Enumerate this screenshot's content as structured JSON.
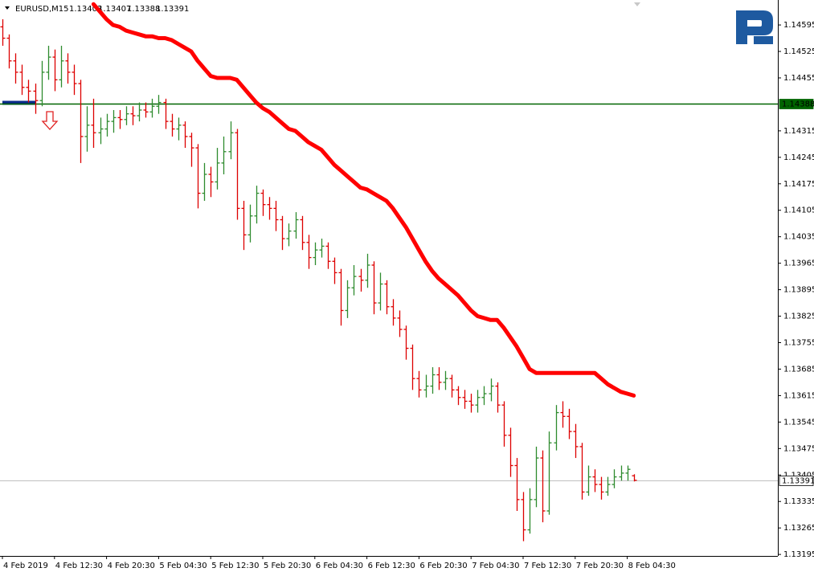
{
  "chart_data": {
    "type": "ohlc",
    "title": "EURUSD,M15",
    "header_values": [
      1.13403,
      1.13407,
      1.13388,
      1.13391
    ],
    "up_color": "#2e8b2e",
    "down_color": "#dd0000",
    "ylim": [
      1.13191,
      1.14661
    ],
    "yticks": [
      1.14595,
      1.14525,
      1.14455,
      1.14315,
      1.14245,
      1.14175,
      1.14105,
      1.14035,
      1.13965,
      1.13895,
      1.13825,
      1.13755,
      1.13685,
      1.13615,
      1.13545,
      1.13475,
      1.13405,
      1.13335,
      1.13265,
      1.13195
    ],
    "categories": [
      "4 Feb 2019",
      null,
      null,
      null,
      null,
      null,
      null,
      null,
      "4 Feb 12:30",
      null,
      null,
      null,
      null,
      null,
      null,
      null,
      "4 Feb 20:30",
      null,
      null,
      null,
      null,
      null,
      null,
      null,
      "5 Feb 04:30",
      null,
      null,
      null,
      null,
      null,
      null,
      null,
      "5 Feb 12:30",
      null,
      null,
      null,
      null,
      null,
      null,
      null,
      "5 Feb 20:30",
      null,
      null,
      null,
      null,
      null,
      null,
      null,
      "6 Feb 04:30",
      null,
      null,
      null,
      null,
      null,
      null,
      null,
      "6 Feb 12:30",
      null,
      null,
      null,
      null,
      null,
      null,
      null,
      "6 Feb 20:30",
      null,
      null,
      null,
      null,
      null,
      null,
      null,
      "7 Feb 04:30",
      null,
      null,
      null,
      null,
      null,
      null,
      null,
      "7 Feb 12:30",
      null,
      null,
      null,
      null,
      null,
      null,
      null,
      "7 Feb 20:30",
      null,
      null,
      null,
      null,
      null,
      null,
      null,
      "8 Feb 04:30",
      null
    ],
    "ohlc": [
      [
        1.1459,
        1.1461,
        1.1454,
        1.1456
      ],
      [
        1.1456,
        1.1457,
        1.1448,
        1.145
      ],
      [
        1.145,
        1.1452,
        1.1444,
        1.1447
      ],
      [
        1.1447,
        1.1449,
        1.1441,
        1.1443
      ],
      [
        1.1443,
        1.1445,
        1.1439,
        1.1442
      ],
      [
        1.1442,
        1.1444,
        1.1436,
        1.14395
      ],
      [
        1.14395,
        1.145,
        1.1438,
        1.1447
      ],
      [
        1.1447,
        1.1454,
        1.1445,
        1.1451
      ],
      [
        1.1451,
        1.1453,
        1.1442,
        1.1445
      ],
      [
        1.1445,
        1.1454,
        1.1443,
        1.145
      ],
      [
        1.145,
        1.1452,
        1.1444,
        1.1447
      ],
      [
        1.1447,
        1.1449,
        1.1441,
        1.1444
      ],
      [
        1.1444,
        1.1445,
        1.1423,
        1.143
      ],
      [
        1.143,
        1.1438,
        1.1426,
        1.1433
      ],
      [
        1.1433,
        1.144,
        1.1427,
        1.1431
      ],
      [
        1.1431,
        1.1435,
        1.1428,
        1.1432
      ],
      [
        1.1432,
        1.1436,
        1.143,
        1.1434
      ],
      [
        1.1434,
        1.1437,
        1.1431,
        1.1435
      ],
      [
        1.1435,
        1.1437,
        1.1432,
        1.14345
      ],
      [
        1.14345,
        1.1438,
        1.1433,
        1.1436
      ],
      [
        1.1436,
        1.1438,
        1.1433,
        1.14355
      ],
      [
        1.14355,
        1.1439,
        1.1434,
        1.1437
      ],
      [
        1.1437,
        1.1439,
        1.1435,
        1.14365
      ],
      [
        1.14365,
        1.144,
        1.1435,
        1.1438
      ],
      [
        1.1438,
        1.1441,
        1.1436,
        1.1439
      ],
      [
        1.1439,
        1.144,
        1.1432,
        1.1434
      ],
      [
        1.1434,
        1.1436,
        1.143,
        1.1432
      ],
      [
        1.1432,
        1.1435,
        1.1429,
        1.1433
      ],
      [
        1.1433,
        1.1434,
        1.1427,
        1.143
      ],
      [
        1.143,
        1.1431,
        1.1422,
        1.1427
      ],
      [
        1.1427,
        1.1428,
        1.1411,
        1.1415
      ],
      [
        1.1415,
        1.1423,
        1.1413,
        1.142
      ],
      [
        1.142,
        1.1422,
        1.1414,
        1.1418
      ],
      [
        1.1418,
        1.1427,
        1.1416,
        1.1423
      ],
      [
        1.1423,
        1.143,
        1.142,
        1.1426
      ],
      [
        1.1426,
        1.1434,
        1.1424,
        1.1431
      ],
      [
        1.1431,
        1.1432,
        1.1408,
        1.1411
      ],
      [
        1.1411,
        1.1413,
        1.14,
        1.1404
      ],
      [
        1.1404,
        1.1412,
        1.1402,
        1.1409
      ],
      [
        1.1409,
        1.1417,
        1.1407,
        1.1415
      ],
      [
        1.1415,
        1.1416,
        1.1409,
        1.1412
      ],
      [
        1.1412,
        1.1414,
        1.1408,
        1.1411
      ],
      [
        1.1411,
        1.1413,
        1.1405,
        1.1408
      ],
      [
        1.1408,
        1.1409,
        1.14,
        1.1403
      ],
      [
        1.1403,
        1.1407,
        1.1401,
        1.1405
      ],
      [
        1.1405,
        1.141,
        1.1403,
        1.1408
      ],
      [
        1.1408,
        1.1409,
        1.14,
        1.1402
      ],
      [
        1.1402,
        1.1404,
        1.1395,
        1.1398
      ],
      [
        1.1398,
        1.1402,
        1.1396,
        1.14
      ],
      [
        1.14,
        1.1403,
        1.1398,
        1.1401
      ],
      [
        1.1401,
        1.1402,
        1.1395,
        1.1397
      ],
      [
        1.1397,
        1.1398,
        1.1391,
        1.1394
      ],
      [
        1.1394,
        1.1395,
        1.138,
        1.1384
      ],
      [
        1.1384,
        1.1392,
        1.1382,
        1.139
      ],
      [
        1.139,
        1.1396,
        1.1388,
        1.1393
      ],
      [
        1.1393,
        1.1395,
        1.1389,
        1.1392
      ],
      [
        1.1392,
        1.1399,
        1.139,
        1.1396
      ],
      [
        1.1396,
        1.1397,
        1.1383,
        1.1386
      ],
      [
        1.1386,
        1.1394,
        1.1384,
        1.1391
      ],
      [
        1.1391,
        1.1392,
        1.1383,
        1.1385
      ],
      [
        1.1385,
        1.1387,
        1.138,
        1.1382
      ],
      [
        1.1382,
        1.1384,
        1.1377,
        1.1379
      ],
      [
        1.1379,
        1.138,
        1.1371,
        1.1374
      ],
      [
        1.1374,
        1.1375,
        1.1363,
        1.1366
      ],
      [
        1.1366,
        1.1368,
        1.1361,
        1.1363
      ],
      [
        1.1363,
        1.1367,
        1.1361,
        1.1364
      ],
      [
        1.1364,
        1.1369,
        1.1362,
        1.1367
      ],
      [
        1.1367,
        1.1369,
        1.1363,
        1.1365
      ],
      [
        1.1365,
        1.1368,
        1.1363,
        1.1366
      ],
      [
        1.1366,
        1.1367,
        1.1361,
        1.1363
      ],
      [
        1.1363,
        1.1364,
        1.1359,
        1.1361
      ],
      [
        1.1361,
        1.1363,
        1.1358,
        1.136
      ],
      [
        1.136,
        1.1362,
        1.1357,
        1.1359
      ],
      [
        1.1359,
        1.1363,
        1.1357,
        1.1361
      ],
      [
        1.1361,
        1.1364,
        1.1359,
        1.1362
      ],
      [
        1.1362,
        1.1366,
        1.136,
        1.1364
      ],
      [
        1.1364,
        1.1365,
        1.1357,
        1.1359
      ],
      [
        1.1359,
        1.136,
        1.1348,
        1.1351
      ],
      [
        1.1351,
        1.1353,
        1.134,
        1.1343
      ],
      [
        1.1343,
        1.1345,
        1.1331,
        1.1334
      ],
      [
        1.1334,
        1.1336,
        1.1323,
        1.1326
      ],
      [
        1.1326,
        1.1337,
        1.1325,
        1.1334
      ],
      [
        1.1334,
        1.1348,
        1.1332,
        1.1345
      ],
      [
        1.1345,
        1.1347,
        1.1328,
        1.1331
      ],
      [
        1.1331,
        1.1352,
        1.133,
        1.1349
      ],
      [
        1.1349,
        1.1359,
        1.1347,
        1.1357
      ],
      [
        1.1357,
        1.136,
        1.1353,
        1.1356
      ],
      [
        1.1356,
        1.1358,
        1.135,
        1.1352
      ],
      [
        1.1352,
        1.1354,
        1.1345,
        1.1348
      ],
      [
        1.1348,
        1.1349,
        1.1334,
        1.1336
      ],
      [
        1.1336,
        1.1343,
        1.1335,
        1.134
      ],
      [
        1.134,
        1.1342,
        1.1336,
        1.1338
      ],
      [
        1.1338,
        1.134,
        1.1334,
        1.1336
      ],
      [
        1.1336,
        1.134,
        1.1335,
        1.1338
      ],
      [
        1.1338,
        1.1342,
        1.1337,
        1.134
      ],
      [
        1.134,
        1.1343,
        1.1339,
        1.1341
      ],
      [
        1.1341,
        1.1343,
        1.1339,
        1.1342
      ],
      [
        1.13403,
        1.13407,
        1.13388,
        1.13391
      ]
    ],
    "ma": {
      "color": "#ff0000",
      "values": [
        null,
        null,
        null,
        null,
        null,
        null,
        null,
        null,
        null,
        null,
        null,
        null,
        null,
        null,
        1.1465,
        1.1463,
        1.1461,
        1.14595,
        1.1459,
        1.1458,
        1.14575,
        1.1457,
        1.14565,
        1.14565,
        1.1456,
        1.1456,
        1.14555,
        1.14545,
        1.14535,
        1.14525,
        1.145,
        1.1448,
        1.1446,
        1.14455,
        1.14455,
        1.14455,
        1.1445,
        1.1443,
        1.1441,
        1.1439,
        1.14375,
        1.14365,
        1.1435,
        1.14335,
        1.1432,
        1.14315,
        1.143,
        1.14285,
        1.14275,
        1.14265,
        1.14245,
        1.14225,
        1.1421,
        1.14195,
        1.1418,
        1.14165,
        1.1416,
        1.1415,
        1.1414,
        1.1413,
        1.1411,
        1.14085,
        1.1406,
        1.1403,
        1.14,
        1.1397,
        1.13945,
        1.13925,
        1.1391,
        1.13895,
        1.1388,
        1.1386,
        1.1384,
        1.13825,
        1.1382,
        1.13815,
        1.13815,
        1.13795,
        1.1377,
        1.13745,
        1.13715,
        1.13685,
        1.13675,
        1.13675,
        1.13675,
        1.13675,
        1.13675,
        1.13675,
        1.13675,
        1.13675,
        1.13675,
        1.13675,
        1.1366,
        1.13645,
        1.13635,
        1.13625,
        1.1362,
        1.13615
      ]
    },
    "level": {
      "value": 1.14388,
      "color": "#006400"
    },
    "bid": {
      "value": 1.13391,
      "color": "#c0c0c0"
    }
  }
}
